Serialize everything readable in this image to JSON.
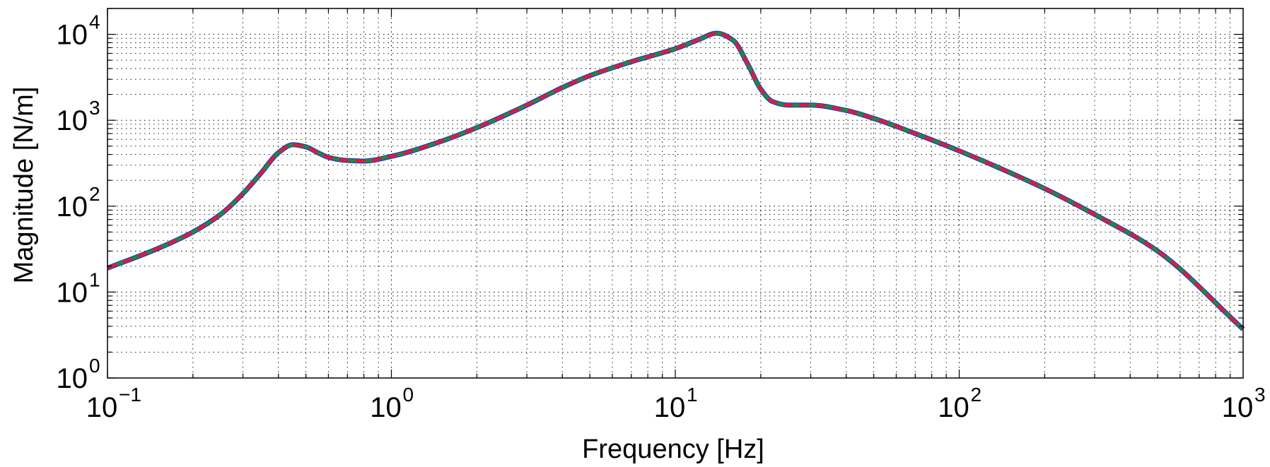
{
  "chart_data": {
    "type": "line",
    "title": "",
    "xlabel": "Frequency [Hz]",
    "ylabel": "Magnitude [N/m]",
    "xscale": "log",
    "yscale": "log",
    "xlim": [
      0.1,
      1000
    ],
    "ylim": [
      1,
      20000
    ],
    "grid": "major and minor, dotted",
    "legend": "none",
    "x_ticks": [
      {
        "base": "10",
        "exp": "−1",
        "value": 0.1
      },
      {
        "base": "10",
        "exp": "0",
        "value": 1
      },
      {
        "base": "10",
        "exp": "1",
        "value": 10
      },
      {
        "base": "10",
        "exp": "2",
        "value": 100
      },
      {
        "base": "10",
        "exp": "3",
        "value": 1000
      }
    ],
    "y_ticks": [
      {
        "base": "10",
        "exp": "0",
        "value": 1
      },
      {
        "base": "10",
        "exp": "1",
        "value": 10
      },
      {
        "base": "10",
        "exp": "2",
        "value": 100
      },
      {
        "base": "10",
        "exp": "3",
        "value": 1000
      },
      {
        "base": "10",
        "exp": "4",
        "value": 10000
      }
    ],
    "series": [
      {
        "color": "#1f2bd0",
        "style": "solid",
        "x": [
          0.1,
          0.15,
          0.2,
          0.25,
          0.3,
          0.35,
          0.4,
          0.45,
          0.5,
          0.55,
          0.6,
          0.7,
          0.8,
          1.0,
          1.5,
          2,
          3,
          4,
          5,
          7,
          10,
          12,
          14,
          16,
          18,
          20,
          22,
          25,
          30,
          40,
          50,
          70,
          100,
          200,
          300,
          500,
          1000
        ],
        "y": [
          19,
          32,
          50,
          80,
          140,
          250,
          420,
          520,
          490,
          420,
          370,
          340,
          335,
          380,
          570,
          820,
          1500,
          2400,
          3300,
          4800,
          6800,
          8600,
          10300,
          8500,
          4500,
          2300,
          1650,
          1500,
          1500,
          1300,
          1050,
          700,
          440,
          160,
          80,
          30,
          3.7
        ]
      },
      {
        "color": "#1e8a3c",
        "style": "solid",
        "x": [
          0.1,
          0.15,
          0.2,
          0.25,
          0.3,
          0.35,
          0.4,
          0.45,
          0.5,
          0.55,
          0.6,
          0.7,
          0.8,
          1.0,
          1.5,
          2,
          3,
          4,
          5,
          7,
          10,
          12,
          14,
          16,
          18,
          20,
          22,
          25,
          30,
          40,
          50,
          70,
          100,
          200,
          300,
          500,
          1000
        ],
        "y": [
          19,
          32,
          50,
          80,
          140,
          250,
          420,
          520,
          490,
          420,
          370,
          340,
          335,
          380,
          570,
          820,
          1500,
          2400,
          3300,
          4800,
          6800,
          8600,
          10300,
          8500,
          4500,
          2300,
          1650,
          1500,
          1500,
          1300,
          1050,
          700,
          440,
          160,
          80,
          30,
          3.7
        ]
      },
      {
        "color": "#e8143c",
        "style": "dashed",
        "x": [
          0.1,
          0.15,
          0.2,
          0.25,
          0.3,
          0.35,
          0.4,
          0.45,
          0.5,
          0.55,
          0.6,
          0.7,
          0.8,
          1.0,
          1.5,
          2,
          3,
          4,
          5,
          7,
          10,
          12,
          14,
          16,
          18,
          20,
          22,
          25,
          30,
          40,
          50,
          70,
          100,
          200,
          300,
          500,
          1000
        ],
        "y": [
          19,
          32,
          50,
          80,
          140,
          250,
          420,
          520,
          490,
          420,
          370,
          340,
          335,
          380,
          570,
          820,
          1500,
          2400,
          3300,
          4800,
          6800,
          8600,
          10300,
          8500,
          4500,
          2300,
          1650,
          1500,
          1500,
          1300,
          1050,
          700,
          440,
          160,
          80,
          30,
          3.7
        ]
      }
    ]
  }
}
